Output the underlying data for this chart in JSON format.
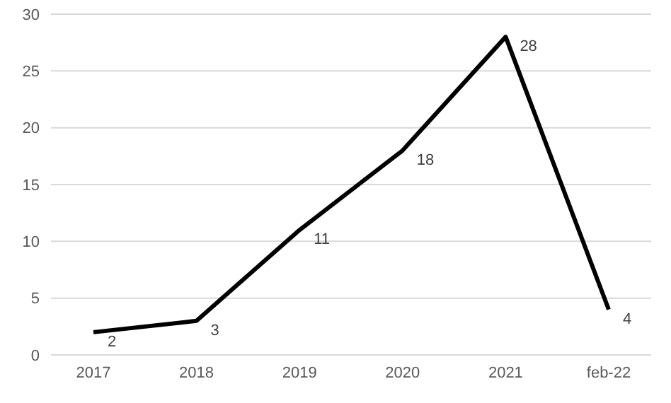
{
  "chart_data": {
    "type": "line",
    "categories": [
      "2017",
      "2018",
      "2019",
      "2020",
      "2021",
      "feb-22"
    ],
    "series": [
      {
        "color": "#000000",
        "values": [
          2,
          3,
          11,
          18,
          28,
          4
        ]
      }
    ],
    "ylim": [
      0,
      30
    ],
    "yticks": [
      0,
      5,
      10,
      15,
      20,
      25,
      30
    ],
    "grid": "y",
    "data_labels": true,
    "marker": "none",
    "line_style": "solid"
  }
}
